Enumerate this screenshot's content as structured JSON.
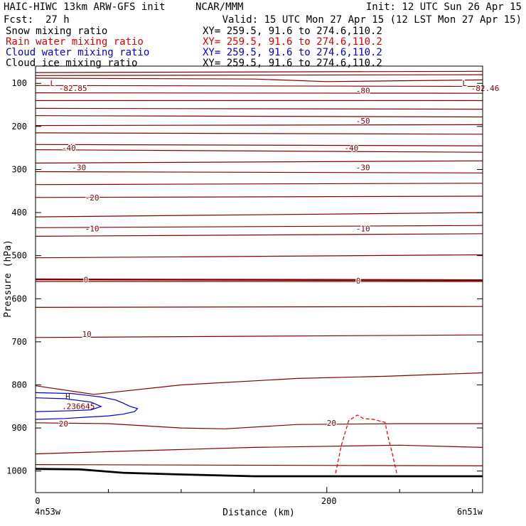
{
  "header": {
    "model": "HAIC-HIWC 13km ARW-GFS init",
    "org": "NCAR/MMM",
    "init": "Init: 12 UTC Sun 26 Apr 15",
    "fcst_label": "Fcst:",
    "fcst_value": "27 h",
    "valid": "Valid: 15 UTC Mon 27 Apr 15 (12 LST Mon 27 Apr 15)",
    "fields": [
      {
        "name": "Snow mixing ratio",
        "xy": "XY= 259.5, 91.6 to 274.6,110.2",
        "color": "#000000"
      },
      {
        "name": "Rain water mixing ratio",
        "xy": "XY= 259.5, 91.6 to 274.6,110.2",
        "color": "#e00000"
      },
      {
        "name": "Cloud water mixing ratio",
        "xy": "XY= 259.5, 91.6 to 274.6,110.2",
        "color": "#0000cc"
      },
      {
        "name": "Cloud ice mixing ratio",
        "xy": "XY= 259.5, 91.6 to 274.6,110.2",
        "color": "#000000"
      }
    ]
  },
  "chart_data": {
    "type": "line",
    "xlabel": "Distance (km)",
    "ylabel": "Pressure (hPa)",
    "xlim": [
      0,
      307
    ],
    "ylim": [
      1050,
      60
    ],
    "xticks": [
      0,
      200
    ],
    "yticks": [
      100,
      200,
      300,
      400,
      500,
      600,
      700,
      800,
      900,
      1000
    ],
    "left_endpoint": "4n53w",
    "right_endpoint": "6n51w",
    "colors": {
      "temperature": "#800000",
      "cloud_water": "#0000cc",
      "rain": "#e00000",
      "terrain": "#000000"
    },
    "isotherms": [
      {
        "x": [
          0,
          307
        ],
        "y": [
          75,
          72
        ]
      },
      {
        "x": [
          0,
          307
        ],
        "y": [
          82,
          80
        ]
      },
      {
        "x": [
          0,
          150,
          200,
          307
        ],
        "y": [
          88,
          90,
          96,
          92
        ]
      },
      {
        "x": [
          0,
          307
        ],
        "y": [
          105,
          107
        ]
      },
      {
        "x": [
          0,
          307
        ],
        "y": [
          122,
          123
        ]
      },
      {
        "x": [
          0,
          307
        ],
        "y": [
          140,
          140
        ]
      },
      {
        "x": [
          0,
          307
        ],
        "y": [
          158,
          160
        ]
      },
      {
        "x": [
          0,
          307
        ],
        "y": [
          175,
          178
        ]
      },
      {
        "x": [
          0,
          307
        ],
        "y": [
          198,
          196
        ]
      },
      {
        "x": [
          0,
          307
        ],
        "y": [
          215,
          218
        ]
      },
      {
        "x": [
          0,
          307
        ],
        "y": [
          242,
          245
        ]
      },
      {
        "x": [
          0,
          307
        ],
        "y": [
          254,
          260
        ]
      },
      {
        "x": [
          0,
          307
        ],
        "y": [
          285,
          280
        ]
      },
      {
        "x": [
          0,
          307
        ],
        "y": [
          305,
          308
        ]
      },
      {
        "x": [
          0,
          307
        ],
        "y": [
          335,
          332
        ]
      },
      {
        "x": [
          0,
          307
        ],
        "y": [
          365,
          362
        ]
      },
      {
        "x": [
          0,
          307
        ],
        "y": [
          410,
          400
        ]
      },
      {
        "x": [
          0,
          307
        ],
        "y": [
          435,
          430
        ]
      },
      {
        "x": [
          0,
          307
        ],
        "y": [
          455,
          449
        ]
      },
      {
        "x": [
          0,
          307
        ],
        "y": [
          505,
          498
        ]
      },
      {
        "x": [
          0,
          307
        ],
        "y": [
          560,
          560
        ]
      },
      {
        "x": [
          0,
          307
        ],
        "y": [
          620,
          618
        ]
      },
      {
        "x": [
          0,
          307
        ],
        "y": [
          690,
          684
        ]
      },
      {
        "x": [
          0,
          40,
          100,
          180,
          240,
          307
        ],
        "y": [
          802,
          822,
          800,
          785,
          780,
          772
        ]
      },
      {
        "x": [
          0,
          50,
          100,
          130,
          180,
          250,
          307
        ],
        "y": [
          888,
          890,
          900,
          902,
          892,
          890,
          890
        ]
      },
      {
        "x": [
          0,
          50,
          150,
          250,
          307
        ],
        "y": [
          960,
          955,
          945,
          940,
          945
        ]
      },
      {
        "x": [
          0,
          307
        ],
        "y": [
          985,
          988
        ]
      }
    ],
    "zero_isotherm": {
      "x": [
        0,
        307
      ],
      "y": [
        555,
        557
      ]
    },
    "contour_labels": [
      {
        "text": "L",
        "x": 10,
        "y": 100
      },
      {
        "text": "-82.85",
        "x": 16,
        "y": 111
      },
      {
        "text": "L",
        "x": 293,
        "y": 100
      },
      {
        "text": "-82.46",
        "x": 299,
        "y": 111
      },
      {
        "text": "-80",
        "x": 220,
        "y": 117
      },
      {
        "text": "-50",
        "x": 220,
        "y": 187
      },
      {
        "text": "-40",
        "x": 18,
        "y": 250
      },
      {
        "text": "-40",
        "x": 212,
        "y": 250
      },
      {
        "text": "-30",
        "x": 25,
        "y": 295
      },
      {
        "text": "-30",
        "x": 220,
        "y": 295
      },
      {
        "text": "-20",
        "x": 34,
        "y": 365
      },
      {
        "text": "-10",
        "x": 34,
        "y": 437
      },
      {
        "text": "-10",
        "x": 220,
        "y": 437
      },
      {
        "text": "0",
        "x": 33,
        "y": 556
      },
      {
        "text": "0",
        "x": 220,
        "y": 558
      },
      {
        "text": "10",
        "x": 32,
        "y": 682
      },
      {
        "text": "20",
        "x": 16,
        "y": 890
      },
      {
        "text": "20",
        "x": 200,
        "y": 888
      }
    ],
    "cloud_water": [
      {
        "x": [
          0,
          25,
          45,
          55,
          60,
          65,
          70,
          68,
          60,
          50,
          35,
          20,
          0
        ],
        "y": [
          818,
          820,
          828,
          835,
          842,
          850,
          855,
          862,
          868,
          872,
          875,
          878,
          880
        ]
      },
      {
        "x": [
          0,
          20,
          38,
          45,
          38,
          25,
          0
        ],
        "y": [
          830,
          832,
          840,
          850,
          858,
          860,
          862
        ]
      }
    ],
    "cloud_water_max": {
      "label": "H",
      "value": ".236645",
      "x": 22,
      "y": 848
    },
    "rain_contour": {
      "x": [
        206,
        210,
        215,
        221,
        225,
        232,
        240,
        242,
        245,
        248
      ],
      "y": [
        1005,
        940,
        883,
        870,
        878,
        880,
        887,
        920,
        960,
        1005
      ]
    },
    "terrain": {
      "x": [
        0,
        30,
        60,
        100,
        150,
        200,
        250,
        307
      ],
      "y": [
        995,
        996,
        1004,
        1008,
        1012,
        1012,
        1012,
        1012
      ]
    }
  }
}
